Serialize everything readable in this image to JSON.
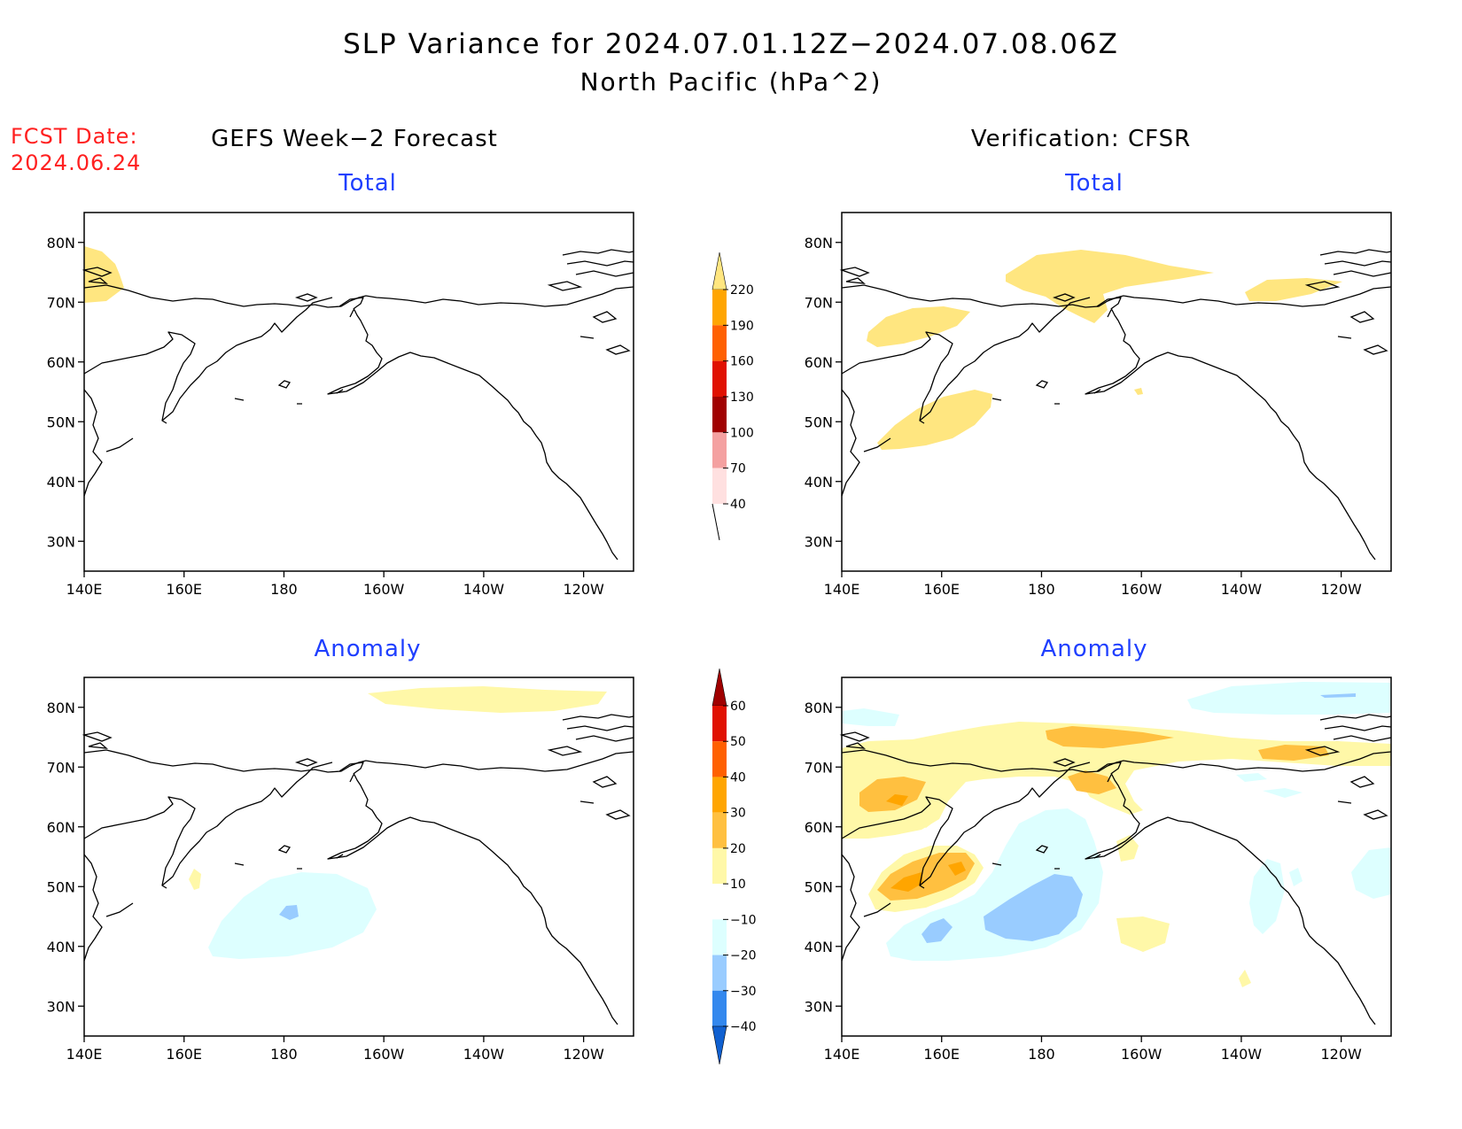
{
  "title": {
    "line1": "SLP Variance for 2024.07.01.12Z−2024.07.08.06Z",
    "line2": "North Pacific (hPa^2)"
  },
  "forecast_date": {
    "label": "FCST Date:",
    "value": "2024.06.24"
  },
  "columns": {
    "left": "GEFS Week−2 Forecast",
    "right": "Verification: CFSR"
  },
  "panels": [
    {
      "id": "fcst-total",
      "label": "Total"
    },
    {
      "id": "verif-total",
      "label": "Total"
    },
    {
      "id": "fcst-anomaly",
      "label": "Anomaly"
    },
    {
      "id": "verif-anomaly",
      "label": "Anomaly"
    }
  ],
  "axes": {
    "lon_ticks": [
      "140E",
      "160E",
      "180",
      "160W",
      "140W",
      "120W"
    ],
    "lat_ticks": [
      "80N",
      "70N",
      "60N",
      "50N",
      "40N",
      "30N"
    ],
    "lon_range_deg_east": [
      140,
      250
    ],
    "lat_range_deg": [
      25,
      85
    ]
  },
  "colorbars": {
    "total": {
      "ticks": [
        "220",
        "190",
        "160",
        "130",
        "100",
        "70",
        "40"
      ],
      "bins": [
        {
          "from": 40,
          "to": 70,
          "color": "#ffe680"
        },
        {
          "from": 70,
          "to": 100,
          "color": "#ffa500"
        },
        {
          "from": 100,
          "to": 130,
          "color": "#ff6000"
        },
        {
          "from": 130,
          "to": 160,
          "color": "#e01000"
        },
        {
          "from": 160,
          "to": 190,
          "color": "#a00000"
        },
        {
          "from": 190,
          "to": 220,
          "color": "#f4a0a0"
        },
        {
          "from": 220,
          "to": null,
          "color": "#ffe0e0"
        }
      ]
    },
    "anomaly": {
      "ticks": [
        "60",
        "50",
        "40",
        "30",
        "20",
        "10",
        "−10",
        "−20",
        "−30",
        "−40"
      ],
      "bins": [
        {
          "from": 60,
          "to": null,
          "color": "#a00000"
        },
        {
          "from": 50,
          "to": 60,
          "color": "#e01000"
        },
        {
          "from": 40,
          "to": 50,
          "color": "#ff6000"
        },
        {
          "from": 30,
          "to": 40,
          "color": "#ffa500"
        },
        {
          "from": 20,
          "to": 30,
          "color": "#ffc040"
        },
        {
          "from": 10,
          "to": 20,
          "color": "#fff8a8"
        },
        {
          "from": -10,
          "to": 10,
          "color": "#ffffff"
        },
        {
          "from": -20,
          "to": -10,
          "color": "#ddffff"
        },
        {
          "from": -30,
          "to": -20,
          "color": "#99ccff"
        },
        {
          "from": -40,
          "to": -30,
          "color": "#3388ee"
        },
        {
          "from": null,
          "to": -40,
          "color": "#1060d0"
        }
      ]
    }
  }
}
